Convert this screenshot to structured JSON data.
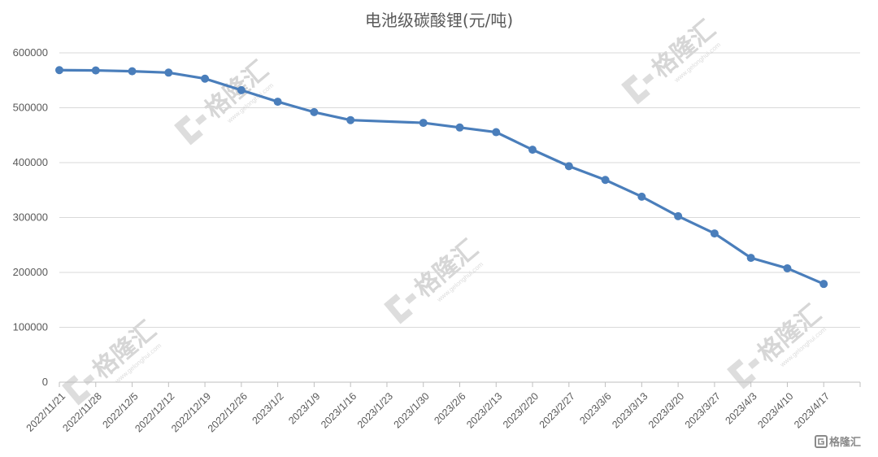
{
  "chart_data": {
    "type": "line",
    "title": "电池级碳酸锂(元/吨)",
    "xlabel": "",
    "ylabel": "",
    "ylim": [
      0,
      600000
    ],
    "yticks": [
      0,
      100000,
      200000,
      300000,
      400000,
      500000,
      600000
    ],
    "grid": true,
    "legend": "none",
    "categories": [
      "2022/11/21",
      "2022/11/28",
      "2022/12/5",
      "2022/12/12",
      "2022/12/19",
      "2022/12/26",
      "2023/1/2",
      "2023/1/9",
      "2023/1/16",
      "2023/1/23",
      "2023/1/30",
      "2023/2/6",
      "2023/2/13",
      "2023/2/20",
      "2023/2/27",
      "2023/3/6",
      "2023/3/13",
      "2023/3/20",
      "2023/3/27",
      "2023/4/3",
      "2023/4/10",
      "2023/4/17"
    ],
    "series": [
      {
        "color": "#4a7ebb",
        "points": [
          {
            "x": "2022/11/21",
            "y": 568500
          },
          {
            "x": "2022/11/28",
            "y": 568000
          },
          {
            "x": "2022/12/5",
            "y": 566500
          },
          {
            "x": "2022/12/12",
            "y": 564000
          },
          {
            "x": "2022/12/19",
            "y": 553000
          },
          {
            "x": "2022/12/26",
            "y": 532000
          },
          {
            "x": "2023/1/2",
            "y": 511000
          },
          {
            "x": "2023/1/9",
            "y": 492000
          },
          {
            "x": "2023/1/16",
            "y": 477500
          },
          {
            "x": "2023/1/30",
            "y": 472500
          },
          {
            "x": "2023/2/6",
            "y": 464000
          },
          {
            "x": "2023/2/13",
            "y": 455500
          },
          {
            "x": "2023/2/20",
            "y": 423500
          },
          {
            "x": "2023/2/27",
            "y": 393500
          },
          {
            "x": "2023/3/6",
            "y": 368500
          },
          {
            "x": "2023/3/13",
            "y": 338000
          },
          {
            "x": "2023/3/20",
            "y": 302500
          },
          {
            "x": "2023/3/27",
            "y": 271000
          },
          {
            "x": "2023/4/3",
            "y": 226500
          },
          {
            "x": "2023/4/10",
            "y": 207500
          },
          {
            "x": "2023/4/17",
            "y": 179000
          }
        ]
      }
    ]
  },
  "watermark": {
    "brand": "格隆汇",
    "url": "www.gelonghui.com",
    "corner_logo": "格隆汇"
  }
}
